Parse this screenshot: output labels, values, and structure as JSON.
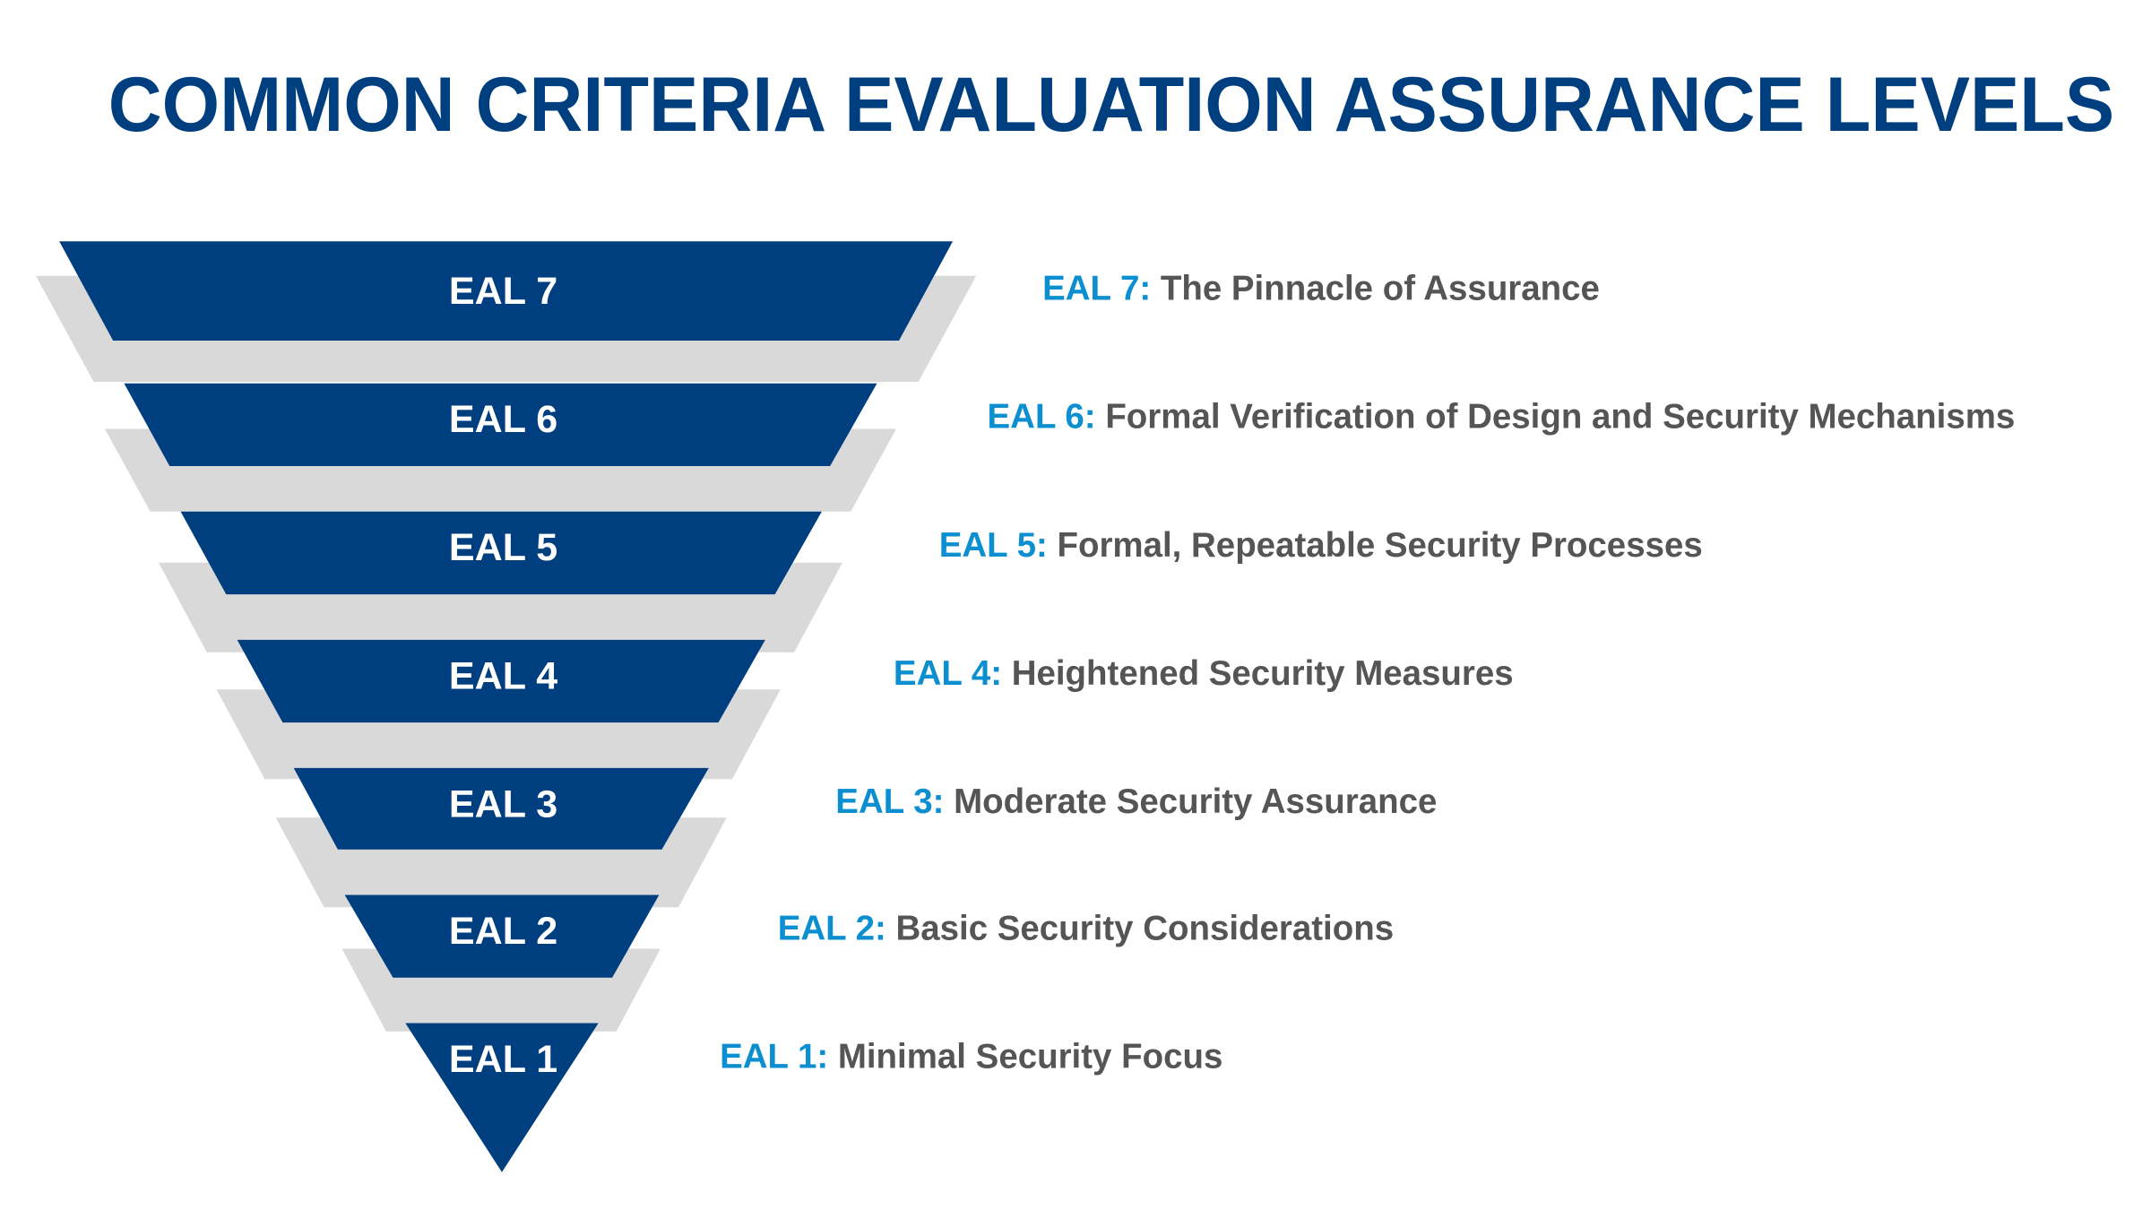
{
  "title": "COMMON CRITERIA EVALUATION ASSURANCE LEVELS",
  "levels": [
    {
      "label": "EAL 7",
      "key": "EAL 7:",
      "description": "The Pinnacle of Assurance"
    },
    {
      "label": "EAL 6",
      "key": "EAL 6:",
      "description": "Formal Verification of Design and Security Mechanisms"
    },
    {
      "label": "EAL 5",
      "key": "EAL 5:",
      "description": "Formal, Repeatable Security Processes"
    },
    {
      "label": "EAL 4",
      "key": "EAL 4:",
      "description": "Heightened Security Measures"
    },
    {
      "label": "EAL 3",
      "key": "EAL 3:",
      "description": "Moderate Security Assurance"
    },
    {
      "label": "EAL 2",
      "key": "EAL 2:",
      "description": "Basic Security Considerations"
    },
    {
      "label": "EAL 1",
      "key": "EAL 1:",
      "description": "Minimal Security Focus"
    }
  ]
}
